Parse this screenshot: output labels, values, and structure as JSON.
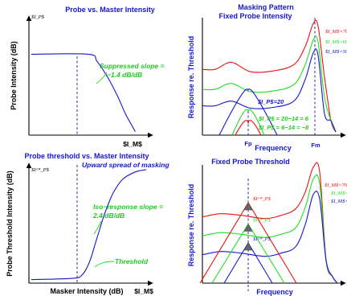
{
  "colors": {
    "blue": "#1616d0",
    "red": "#ee1111",
    "green": "#22dd22",
    "gray": "#666666",
    "black": "#000000"
  },
  "panel_tl": {
    "title": "Probe vs. Master Intensity",
    "y_mark": "$I_P$",
    "ylabel": "Probe Intensity (dB)",
    "xlabel": "$I_M$",
    "annotation": "Suppressed slope =",
    "annotation2": "−1.4 dB/dB",
    "curve": [
      [
        0.02,
        0.32
      ],
      [
        0.48,
        0.32
      ],
      [
        0.55,
        0.38
      ],
      [
        0.64,
        0.52
      ],
      [
        0.72,
        0.68
      ],
      [
        0.78,
        0.82
      ],
      [
        0.86,
        0.97
      ]
    ]
  },
  "panel_bl": {
    "title": "Probe threshold vs. Master Intensity",
    "y_mark": "$I^*_P$",
    "ylabel": "Probe Threshold Intensity (dB)",
    "xlabel_left": "Masker Intensity (dB)",
    "xlabel_right": "$I_M$",
    "ann_spread": "Upward spread of masking",
    "ann_slope": "Iso−response slope =",
    "ann_slope2": "2.4 dB/dB",
    "ann_threshold": "Threshold",
    "curve": [
      [
        0.02,
        0.97
      ],
      [
        0.35,
        0.96
      ],
      [
        0.43,
        0.93
      ],
      [
        0.49,
        0.82
      ],
      [
        0.55,
        0.62
      ],
      [
        0.61,
        0.42
      ],
      [
        0.68,
        0.24
      ],
      [
        0.76,
        0.12
      ],
      [
        0.86,
        0.06
      ],
      [
        0.95,
        0.04
      ]
    ]
  },
  "panel_tr": {
    "title": "Masking Pattern",
    "subtitle": "Fixed Probe Intensity",
    "ylabel": "Response re. Threshold",
    "xlabel": "Frequency",
    "fp_label": "Fp",
    "fm_label": "Fm",
    "series": [
      {
        "color": "red",
        "label": "$I_M$=70",
        "label_y": 0.13,
        "ann": "$I_P$ = 6−14 = −8",
        "base": 0.44,
        "bump": 0.06,
        "peak": 0.05
      },
      {
        "color": "green",
        "label": "$I_M$=60",
        "label_y": 0.22,
        "ann": "$I_P$ = 20−14 = 6",
        "base": 0.61,
        "bump": 0.05,
        "peak": 0.19
      },
      {
        "color": "blue",
        "label": "$I_M$=50",
        "label_y": 0.3,
        "ann": "$I_P$=20",
        "base": 0.75,
        "bump": 0.04,
        "peak": 0.3
      }
    ],
    "probe_curves": [
      {
        "color": "blue",
        "peak": 0.62
      },
      {
        "color": "green",
        "peak": 0.8
      },
      {
        "color": "red",
        "peak": 0.9
      }
    ]
  },
  "panel_br": {
    "title": "Fixed Probe Threshold",
    "ylabel": "Response re. Threshold",
    "xlabel": "Frequency",
    "series": [
      {
        "color": "red",
        "label": "$I_M$=70",
        "base": 0.44,
        "peak": 0.02,
        "probe_peak": 0.32,
        "probe_label": "$I^*_P$"
      },
      {
        "color": "green",
        "label": "$I_M$=60",
        "base": 0.6,
        "peak": 0.12,
        "probe_peak": 0.5,
        "probe_label": "$I^*_P$"
      },
      {
        "color": "blue",
        "label": "$I_M$=50",
        "base": 0.76,
        "peak": 0.25,
        "probe_peak": 0.66,
        "probe_label": "$I^*_P$"
      }
    ]
  }
}
